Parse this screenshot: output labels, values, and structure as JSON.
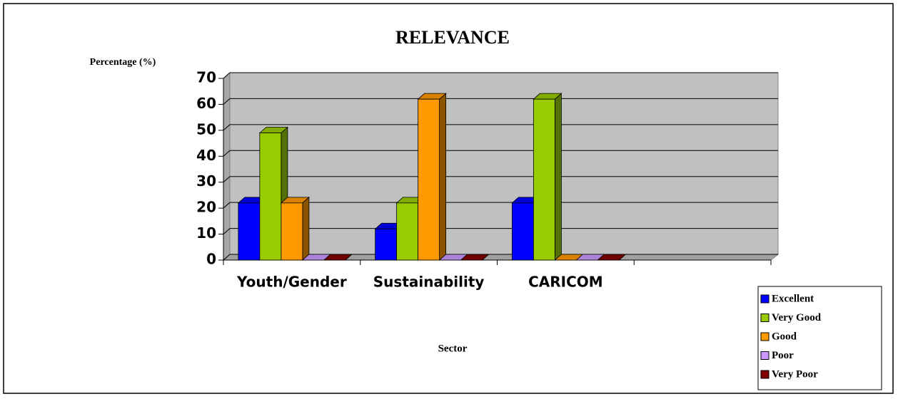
{
  "chart_data": {
    "type": "bar3d",
    "title": "RELEVANCE",
    "y_label": "Percentage (%)",
    "x_label": "Sector",
    "categories": [
      "Youth/Gender",
      "Sustainability",
      "CARICOM",
      null
    ],
    "series": [
      {
        "name": "Excellent",
        "color": "#0000ff",
        "values": [
          22,
          12,
          22,
          null
        ]
      },
      {
        "name": "Very Good",
        "color": "#99cc00",
        "values": [
          49,
          22,
          62,
          null
        ]
      },
      {
        "name": "Good",
        "color": "#ff9900",
        "values": [
          22,
          62,
          0,
          null
        ]
      },
      {
        "name": "Poor",
        "color": "#cc99ff",
        "values": [
          0,
          0,
          0,
          null
        ]
      },
      {
        "name": "Very Poor",
        "color": "#800000",
        "values": [
          0,
          0,
          0,
          null
        ]
      }
    ],
    "ylim": [
      0,
      70
    ],
    "yticks": [
      0,
      10,
      20,
      30,
      40,
      50,
      60,
      70
    ],
    "grid": true,
    "legend": "bottom-right"
  }
}
